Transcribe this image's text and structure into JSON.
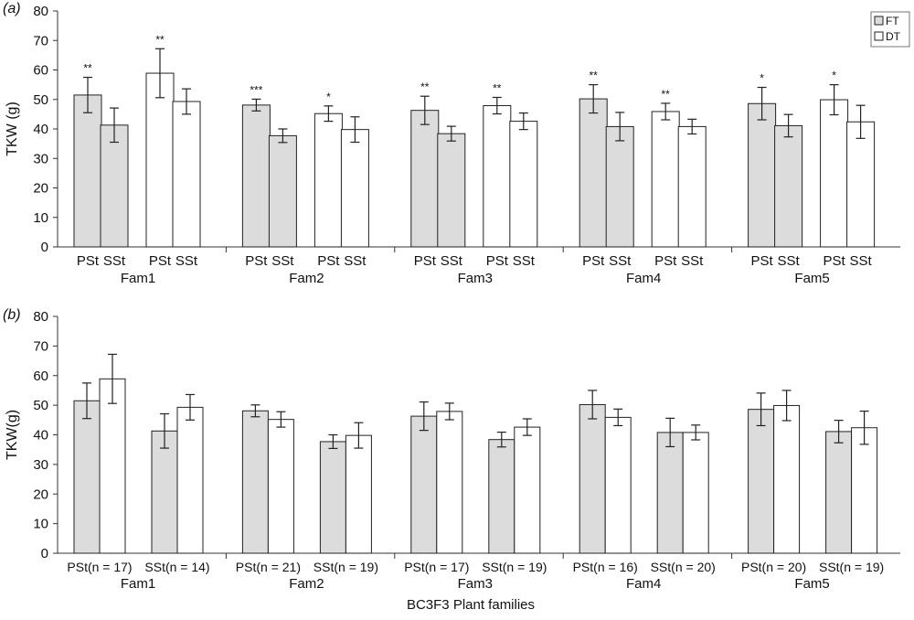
{
  "colors": {
    "FT": "#dcdcdc",
    "DT": "#ffffff",
    "axis": "#333333"
  },
  "legend": {
    "items": [
      {
        "label": "FT",
        "color": "#dcdcdc"
      },
      {
        "label": "DT",
        "color": "#ffffff"
      }
    ],
    "placement": "top-right"
  },
  "xlabel_bottom": "BC3F3 Plant  families",
  "chart_data": [
    {
      "panel_label": "(a)",
      "type": "bar",
      "ylabel": "TKW (g)",
      "ylim": [
        0,
        80
      ],
      "yticks": [
        0,
        10,
        20,
        30,
        40,
        50,
        60,
        70,
        80
      ],
      "grid": false,
      "groups": [
        {
          "family": "Fam1",
          "bars": [
            {
              "series": "FT",
              "sub": "PSt",
              "value": 51.5,
              "err": 6.0,
              "sig": "**"
            },
            {
              "series": "FT",
              "sub": "SSt",
              "value": 41.3,
              "err": 5.8,
              "sig": ""
            },
            {
              "series": "DT",
              "sub": "PSt",
              "value": 58.9,
              "err": 8.3,
              "sig": "**"
            },
            {
              "series": "DT",
              "sub": "SSt",
              "value": 49.3,
              "err": 4.3,
              "sig": ""
            }
          ]
        },
        {
          "family": "Fam2",
          "bars": [
            {
              "series": "FT",
              "sub": "PSt",
              "value": 48.1,
              "err": 2.0,
              "sig": "***"
            },
            {
              "series": "FT",
              "sub": "SSt",
              "value": 37.7,
              "err": 2.3,
              "sig": ""
            },
            {
              "series": "DT",
              "sub": "PSt",
              "value": 45.2,
              "err": 2.6,
              "sig": "*"
            },
            {
              "series": "DT",
              "sub": "SSt",
              "value": 39.8,
              "err": 4.3,
              "sig": ""
            }
          ]
        },
        {
          "family": "Fam3",
          "bars": [
            {
              "series": "FT",
              "sub": "PSt",
              "value": 46.3,
              "err": 4.8,
              "sig": "**"
            },
            {
              "series": "FT",
              "sub": "SSt",
              "value": 38.4,
              "err": 2.5,
              "sig": ""
            },
            {
              "series": "DT",
              "sub": "PSt",
              "value": 47.9,
              "err": 2.8,
              "sig": "**"
            },
            {
              "series": "DT",
              "sub": "SSt",
              "value": 42.6,
              "err": 2.8,
              "sig": ""
            }
          ]
        },
        {
          "family": "Fam4",
          "bars": [
            {
              "series": "FT",
              "sub": "PSt",
              "value": 50.2,
              "err": 4.8,
              "sig": "**"
            },
            {
              "series": "FT",
              "sub": "SSt",
              "value": 40.8,
              "err": 4.8,
              "sig": ""
            },
            {
              "series": "DT",
              "sub": "PSt",
              "value": 45.9,
              "err": 2.8,
              "sig": "**"
            },
            {
              "series": "DT",
              "sub": "SSt",
              "value": 40.8,
              "err": 2.5,
              "sig": ""
            }
          ]
        },
        {
          "family": "Fam5",
          "bars": [
            {
              "series": "FT",
              "sub": "PSt",
              "value": 48.6,
              "err": 5.5,
              "sig": "*"
            },
            {
              "series": "FT",
              "sub": "SSt",
              "value": 41.1,
              "err": 3.8,
              "sig": ""
            },
            {
              "series": "DT",
              "sub": "PSt",
              "value": 49.9,
              "err": 5.1,
              "sig": "*"
            },
            {
              "series": "DT",
              "sub": "SSt",
              "value": 42.4,
              "err": 5.6,
              "sig": ""
            }
          ]
        }
      ]
    },
    {
      "panel_label": "(b)",
      "type": "bar",
      "ylabel": "TKW(g)",
      "ylim": [
        0,
        80
      ],
      "yticks": [
        0,
        10,
        20,
        30,
        40,
        50,
        60,
        70,
        80
      ],
      "grid": false,
      "groups": [
        {
          "family": "Fam1",
          "pairs": [
            {
              "label": "PSt(n = 17)",
              "bars": [
                {
                  "series": "FT",
                  "value": 51.5,
                  "err": 6.0
                },
                {
                  "series": "DT",
                  "value": 58.9,
                  "err": 8.3
                }
              ]
            },
            {
              "label": "SSt(n = 14)",
              "bars": [
                {
                  "series": "FT",
                  "value": 41.3,
                  "err": 5.8
                },
                {
                  "series": "DT",
                  "value": 49.3,
                  "err": 4.3
                }
              ]
            }
          ]
        },
        {
          "family": "Fam2",
          "pairs": [
            {
              "label": "PSt(n = 21)",
              "bars": [
                {
                  "series": "FT",
                  "value": 48.1,
                  "err": 2.0
                },
                {
                  "series": "DT",
                  "value": 45.2,
                  "err": 2.6
                }
              ]
            },
            {
              "label": "SSt(n = 19)",
              "bars": [
                {
                  "series": "FT",
                  "value": 37.7,
                  "err": 2.3
                },
                {
                  "series": "DT",
                  "value": 39.8,
                  "err": 4.3
                }
              ]
            }
          ]
        },
        {
          "family": "Fam3",
          "pairs": [
            {
              "label": "PSt(n = 17)",
              "bars": [
                {
                  "series": "FT",
                  "value": 46.3,
                  "err": 4.8
                },
                {
                  "series": "DT",
                  "value": 47.9,
                  "err": 2.8
                }
              ]
            },
            {
              "label": "SSt(n = 19)",
              "bars": [
                {
                  "series": "FT",
                  "value": 38.4,
                  "err": 2.5
                },
                {
                  "series": "DT",
                  "value": 42.6,
                  "err": 2.8
                }
              ]
            }
          ]
        },
        {
          "family": "Fam4",
          "pairs": [
            {
              "label": "PSt(n = 16)",
              "bars": [
                {
                  "series": "FT",
                  "value": 50.2,
                  "err": 4.8
                },
                {
                  "series": "DT",
                  "value": 45.9,
                  "err": 2.8
                }
              ]
            },
            {
              "label": "SSt(n = 20)",
              "bars": [
                {
                  "series": "FT",
                  "value": 40.8,
                  "err": 4.8
                },
                {
                  "series": "DT",
                  "value": 40.8,
                  "err": 2.5
                }
              ]
            }
          ]
        },
        {
          "family": "Fam5",
          "pairs": [
            {
              "label": "PSt(n = 20)",
              "bars": [
                {
                  "series": "FT",
                  "value": 48.6,
                  "err": 5.5
                },
                {
                  "series": "DT",
                  "value": 49.9,
                  "err": 5.1
                }
              ]
            },
            {
              "label": "SSt(n = 19)",
              "bars": [
                {
                  "series": "FT",
                  "value": 41.1,
                  "err": 3.8
                },
                {
                  "series": "DT",
                  "value": 42.4,
                  "err": 5.6
                }
              ]
            }
          ]
        }
      ]
    }
  ]
}
